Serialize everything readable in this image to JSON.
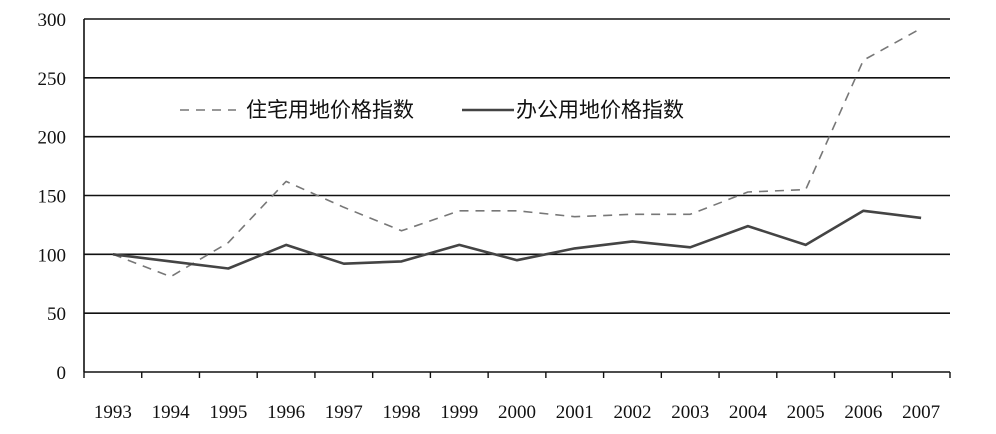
{
  "chart_data": {
    "type": "line",
    "title": "",
    "xlabel": "",
    "ylabel": "",
    "categories": [
      "1993",
      "1994",
      "1995",
      "1996",
      "1997",
      "1998",
      "1999",
      "2000",
      "2001",
      "2002",
      "2003",
      "2004",
      "2005",
      "2006",
      "2007"
    ],
    "ylim": [
      0,
      300
    ],
    "yticks": [
      0,
      50,
      100,
      150,
      200,
      250,
      300
    ],
    "grid": true,
    "legend_position": "top-left",
    "series": [
      {
        "name": "住宅用地价格指数",
        "style": "dashed",
        "color": "#777777",
        "values": [
          100,
          81,
          110,
          162,
          140,
          120,
          137,
          137,
          132,
          134,
          134,
          153,
          155,
          265,
          292
        ]
      },
      {
        "name": "办公用地价格指数",
        "style": "solid",
        "color": "#444444",
        "values": [
          100,
          94,
          88,
          108,
          92,
          94,
          108,
          95,
          105,
          111,
          106,
          124,
          108,
          137,
          131
        ]
      }
    ]
  }
}
